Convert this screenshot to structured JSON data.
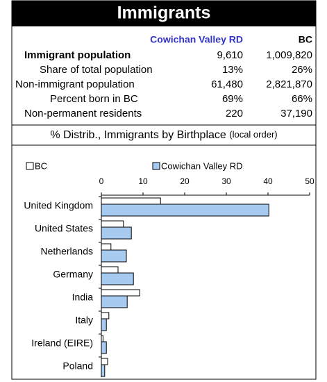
{
  "header": {
    "title": "Immigrants"
  },
  "table": {
    "columns": [
      "Cowichan Valley RD",
      "BC"
    ],
    "rows": [
      [
        "Immigrant population",
        "9,610",
        "1,009,820"
      ],
      [
        "Share of total population",
        "13%",
        "26%"
      ],
      [
        "Non-immigrant population",
        "61,480",
        "2,821,870"
      ],
      [
        "Percent born in BC",
        "69%",
        "66%"
      ],
      [
        "Non-permanent residents",
        "220",
        "37,190"
      ]
    ]
  },
  "section": {
    "title": "% Distrib., Immigrants by Birthplace",
    "note": "(local order)"
  },
  "chart_data": {
    "type": "barh",
    "categories": [
      "United Kingdom",
      "United States",
      "Netherlands",
      "Germany",
      "India",
      "Italy",
      "Ireland (EIRE)",
      "Poland"
    ],
    "series": [
      {
        "name": "BC",
        "color": "#ffffff",
        "values": [
          14.2,
          5.3,
          2.3,
          4.0,
          9.2,
          1.8,
          0.4,
          1.5
        ]
      },
      {
        "name": "Cowichan Valley RD",
        "color": "#a6caf0",
        "values": [
          40.2,
          7.2,
          6.0,
          7.7,
          6.2,
          1.2,
          1.2,
          0.8
        ]
      }
    ],
    "xlim": [
      0,
      50
    ],
    "xticks": [
      0,
      10,
      20,
      30,
      40,
      50
    ],
    "legend": "top",
    "grid": false
  }
}
